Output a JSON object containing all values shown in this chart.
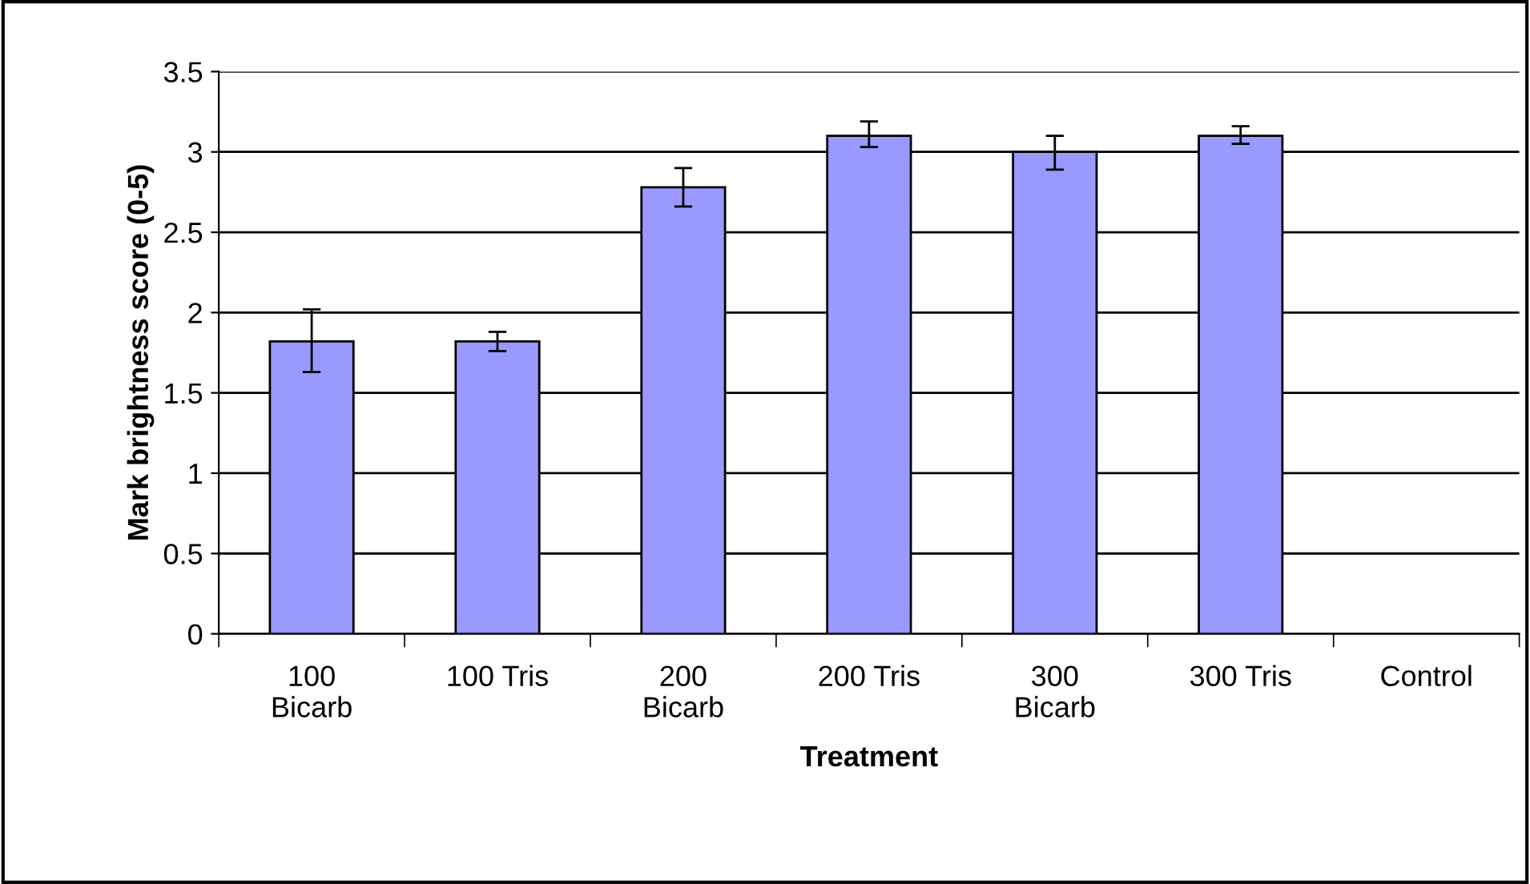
{
  "chart_data": {
    "type": "bar",
    "xlabel": "Treatment",
    "ylabel": "Mark brightness score (0-5)",
    "categories": [
      "100\nBicarb",
      "100 Tris",
      "200\nBicarb",
      "200 Tris",
      "300\nBicarb",
      "300 Tris",
      "Control"
    ],
    "values": [
      1.82,
      1.82,
      2.78,
      3.1,
      3.0,
      3.1,
      0
    ],
    "errors": [
      [
        1.63,
        2.02
      ],
      [
        1.76,
        1.88
      ],
      [
        2.66,
        2.9
      ],
      [
        3.03,
        3.19
      ],
      [
        2.89,
        3.1
      ],
      [
        3.05,
        3.16
      ],
      null
    ],
    "color": "#9999ff",
    "ylim": [
      0,
      3.5
    ],
    "yticks": [
      0,
      0.5,
      1,
      1.5,
      2,
      2.5,
      3,
      3.5
    ],
    "grid": "y",
    "legend": false
  }
}
